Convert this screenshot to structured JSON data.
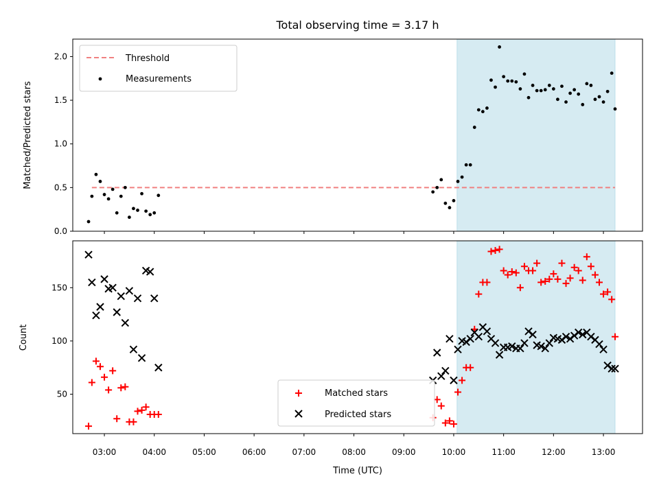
{
  "chart_data": [
    {
      "type": "scatter",
      "panel": "top",
      "title": "Total observing time = 3.17 h",
      "xlabel": "",
      "ylabel": "Matched/Predicted stars",
      "ylim": [
        0,
        2.2
      ],
      "yticks": [
        "0.0",
        "0.5",
        "1.0",
        "1.5",
        "2.0"
      ],
      "xlim": [
        "02:22",
        "13:47"
      ],
      "highlight_span": {
        "start": "10:04",
        "end": "13:14",
        "color": "#add8e6"
      },
      "legend_position": "upper-left",
      "threshold": {
        "name": "Threshold",
        "y": 0.5,
        "x_start": "02:45",
        "x_end": "13:14",
        "color": "#f08080"
      },
      "series": [
        {
          "name": "Measurements",
          "color": "#000000",
          "marker": "dot",
          "x": [
            "02:41",
            "02:45",
            "02:50",
            "02:55",
            "03:00",
            "03:05",
            "03:10",
            "03:15",
            "03:20",
            "03:25",
            "03:30",
            "03:35",
            "03:40",
            "03:45",
            "03:50",
            "03:55",
            "04:00",
            "04:05",
            "09:35",
            "09:40",
            "09:45",
            "09:50",
            "09:55",
            "10:00",
            "10:05",
            "10:10",
            "10:15",
            "10:20",
            "10:25",
            "10:30",
            "10:35",
            "10:40",
            "10:45",
            "10:50",
            "10:55",
            "11:00",
            "11:05",
            "11:10",
            "11:15",
            "11:20",
            "11:25",
            "11:30",
            "11:35",
            "11:40",
            "11:45",
            "11:50",
            "11:55",
            "12:00",
            "12:05",
            "12:10",
            "12:15",
            "12:20",
            "12:25",
            "12:30",
            "12:35",
            "12:40",
            "12:45",
            "12:50",
            "12:55",
            "13:00",
            "13:05",
            "13:10",
            "13:14"
          ],
          "y": [
            0.11,
            0.4,
            0.65,
            0.57,
            0.42,
            0.37,
            0.48,
            0.21,
            0.4,
            0.5,
            0.16,
            0.26,
            0.24,
            0.43,
            0.23,
            0.19,
            0.21,
            0.41,
            0.45,
            0.5,
            0.59,
            0.32,
            0.27,
            0.35,
            0.57,
            0.62,
            0.76,
            0.76,
            1.19,
            1.39,
            1.37,
            1.41,
            1.73,
            1.65,
            2.11,
            1.77,
            1.72,
            1.72,
            1.71,
            1.63,
            1.8,
            1.53,
            1.67,
            1.61,
            1.61,
            1.62,
            1.67,
            1.63,
            1.51,
            1.66,
            1.48,
            1.58,
            1.62,
            1.57,
            1.45,
            1.69,
            1.67,
            1.51,
            1.54,
            1.48,
            1.6,
            1.81,
            1.4
          ]
        }
      ]
    },
    {
      "type": "scatter",
      "panel": "bottom",
      "xlabel": "Time (UTC)",
      "ylabel": "Count",
      "ylim": [
        13,
        194
      ],
      "yticks": [
        "50",
        "100",
        "150"
      ],
      "xticks": [
        "03:00",
        "04:00",
        "05:00",
        "06:00",
        "07:00",
        "08:00",
        "09:00",
        "10:00",
        "11:00",
        "12:00",
        "13:00"
      ],
      "xlim": [
        "02:22",
        "13:47"
      ],
      "highlight_span": {
        "start": "10:04",
        "end": "13:14",
        "color": "#add8e6"
      },
      "legend_position": "lower-center",
      "series": [
        {
          "name": "Matched stars",
          "color": "#ff0000",
          "marker": "plus",
          "x": [
            "02:41",
            "02:45",
            "02:50",
            "02:55",
            "03:00",
            "03:05",
            "03:10",
            "03:15",
            "03:20",
            "03:25",
            "03:30",
            "03:35",
            "03:40",
            "03:45",
            "03:50",
            "03:55",
            "04:00",
            "04:05",
            "09:35",
            "09:40",
            "09:45",
            "09:50",
            "09:55",
            "10:00",
            "10:05",
            "10:10",
            "10:15",
            "10:20",
            "10:25",
            "10:30",
            "10:35",
            "10:40",
            "10:45",
            "10:50",
            "10:55",
            "11:00",
            "11:05",
            "11:10",
            "11:15",
            "11:20",
            "11:25",
            "11:30",
            "11:35",
            "11:40",
            "11:45",
            "11:50",
            "11:55",
            "12:00",
            "12:05",
            "12:10",
            "12:15",
            "12:20",
            "12:25",
            "12:30",
            "12:35",
            "12:40",
            "12:45",
            "12:50",
            "12:55",
            "13:00",
            "13:05",
            "13:10",
            "13:14"
          ],
          "y": [
            20,
            61,
            81,
            76,
            66,
            54,
            72,
            27,
            56,
            57,
            24,
            24,
            34,
            35,
            38,
            31,
            31,
            31,
            28,
            45,
            39,
            23,
            25,
            22,
            52,
            63,
            75,
            75,
            111,
            144,
            155,
            155,
            184,
            185,
            186,
            166,
            162,
            165,
            164,
            150,
            170,
            166,
            166,
            173,
            155,
            156,
            158,
            163,
            158,
            173,
            154,
            159,
            169,
            166,
            157,
            179,
            170,
            162,
            155,
            144,
            146,
            139,
            104
          ]
        },
        {
          "name": "Predicted stars",
          "color": "#000000",
          "marker": "x",
          "x": [
            "02:41",
            "02:45",
            "02:50",
            "02:55",
            "03:00",
            "03:05",
            "03:10",
            "03:15",
            "03:20",
            "03:25",
            "03:30",
            "03:35",
            "03:40",
            "03:45",
            "03:50",
            "03:55",
            "04:00",
            "04:05",
            "09:35",
            "09:40",
            "09:45",
            "09:50",
            "09:55",
            "10:00",
            "10:05",
            "10:10",
            "10:15",
            "10:20",
            "10:25",
            "10:30",
            "10:35",
            "10:40",
            "10:45",
            "10:50",
            "10:55",
            "11:00",
            "11:05",
            "11:10",
            "11:15",
            "11:20",
            "11:25",
            "11:30",
            "11:35",
            "11:40",
            "11:45",
            "11:50",
            "11:55",
            "12:00",
            "12:05",
            "12:10",
            "12:15",
            "12:20",
            "12:25",
            "12:30",
            "12:35",
            "12:40",
            "12:45",
            "12:50",
            "12:55",
            "13:00",
            "13:05",
            "13:10",
            "13:14"
          ],
          "y": [
            181,
            155,
            124,
            132,
            158,
            149,
            150,
            127,
            142,
            117,
            147,
            92,
            140,
            84,
            166,
            165,
            140,
            75,
            63,
            89,
            67,
            72,
            102,
            63,
            92,
            100,
            99,
            102,
            108,
            104,
            113,
            109,
            102,
            98,
            87,
            94,
            94,
            95,
            93,
            93,
            98,
            109,
            106,
            96,
            95,
            93,
            98,
            103,
            102,
            101,
            104,
            102,
            105,
            108,
            106,
            108,
            104,
            101,
            97,
            92,
            77,
            74,
            74
          ]
        }
      ]
    }
  ]
}
